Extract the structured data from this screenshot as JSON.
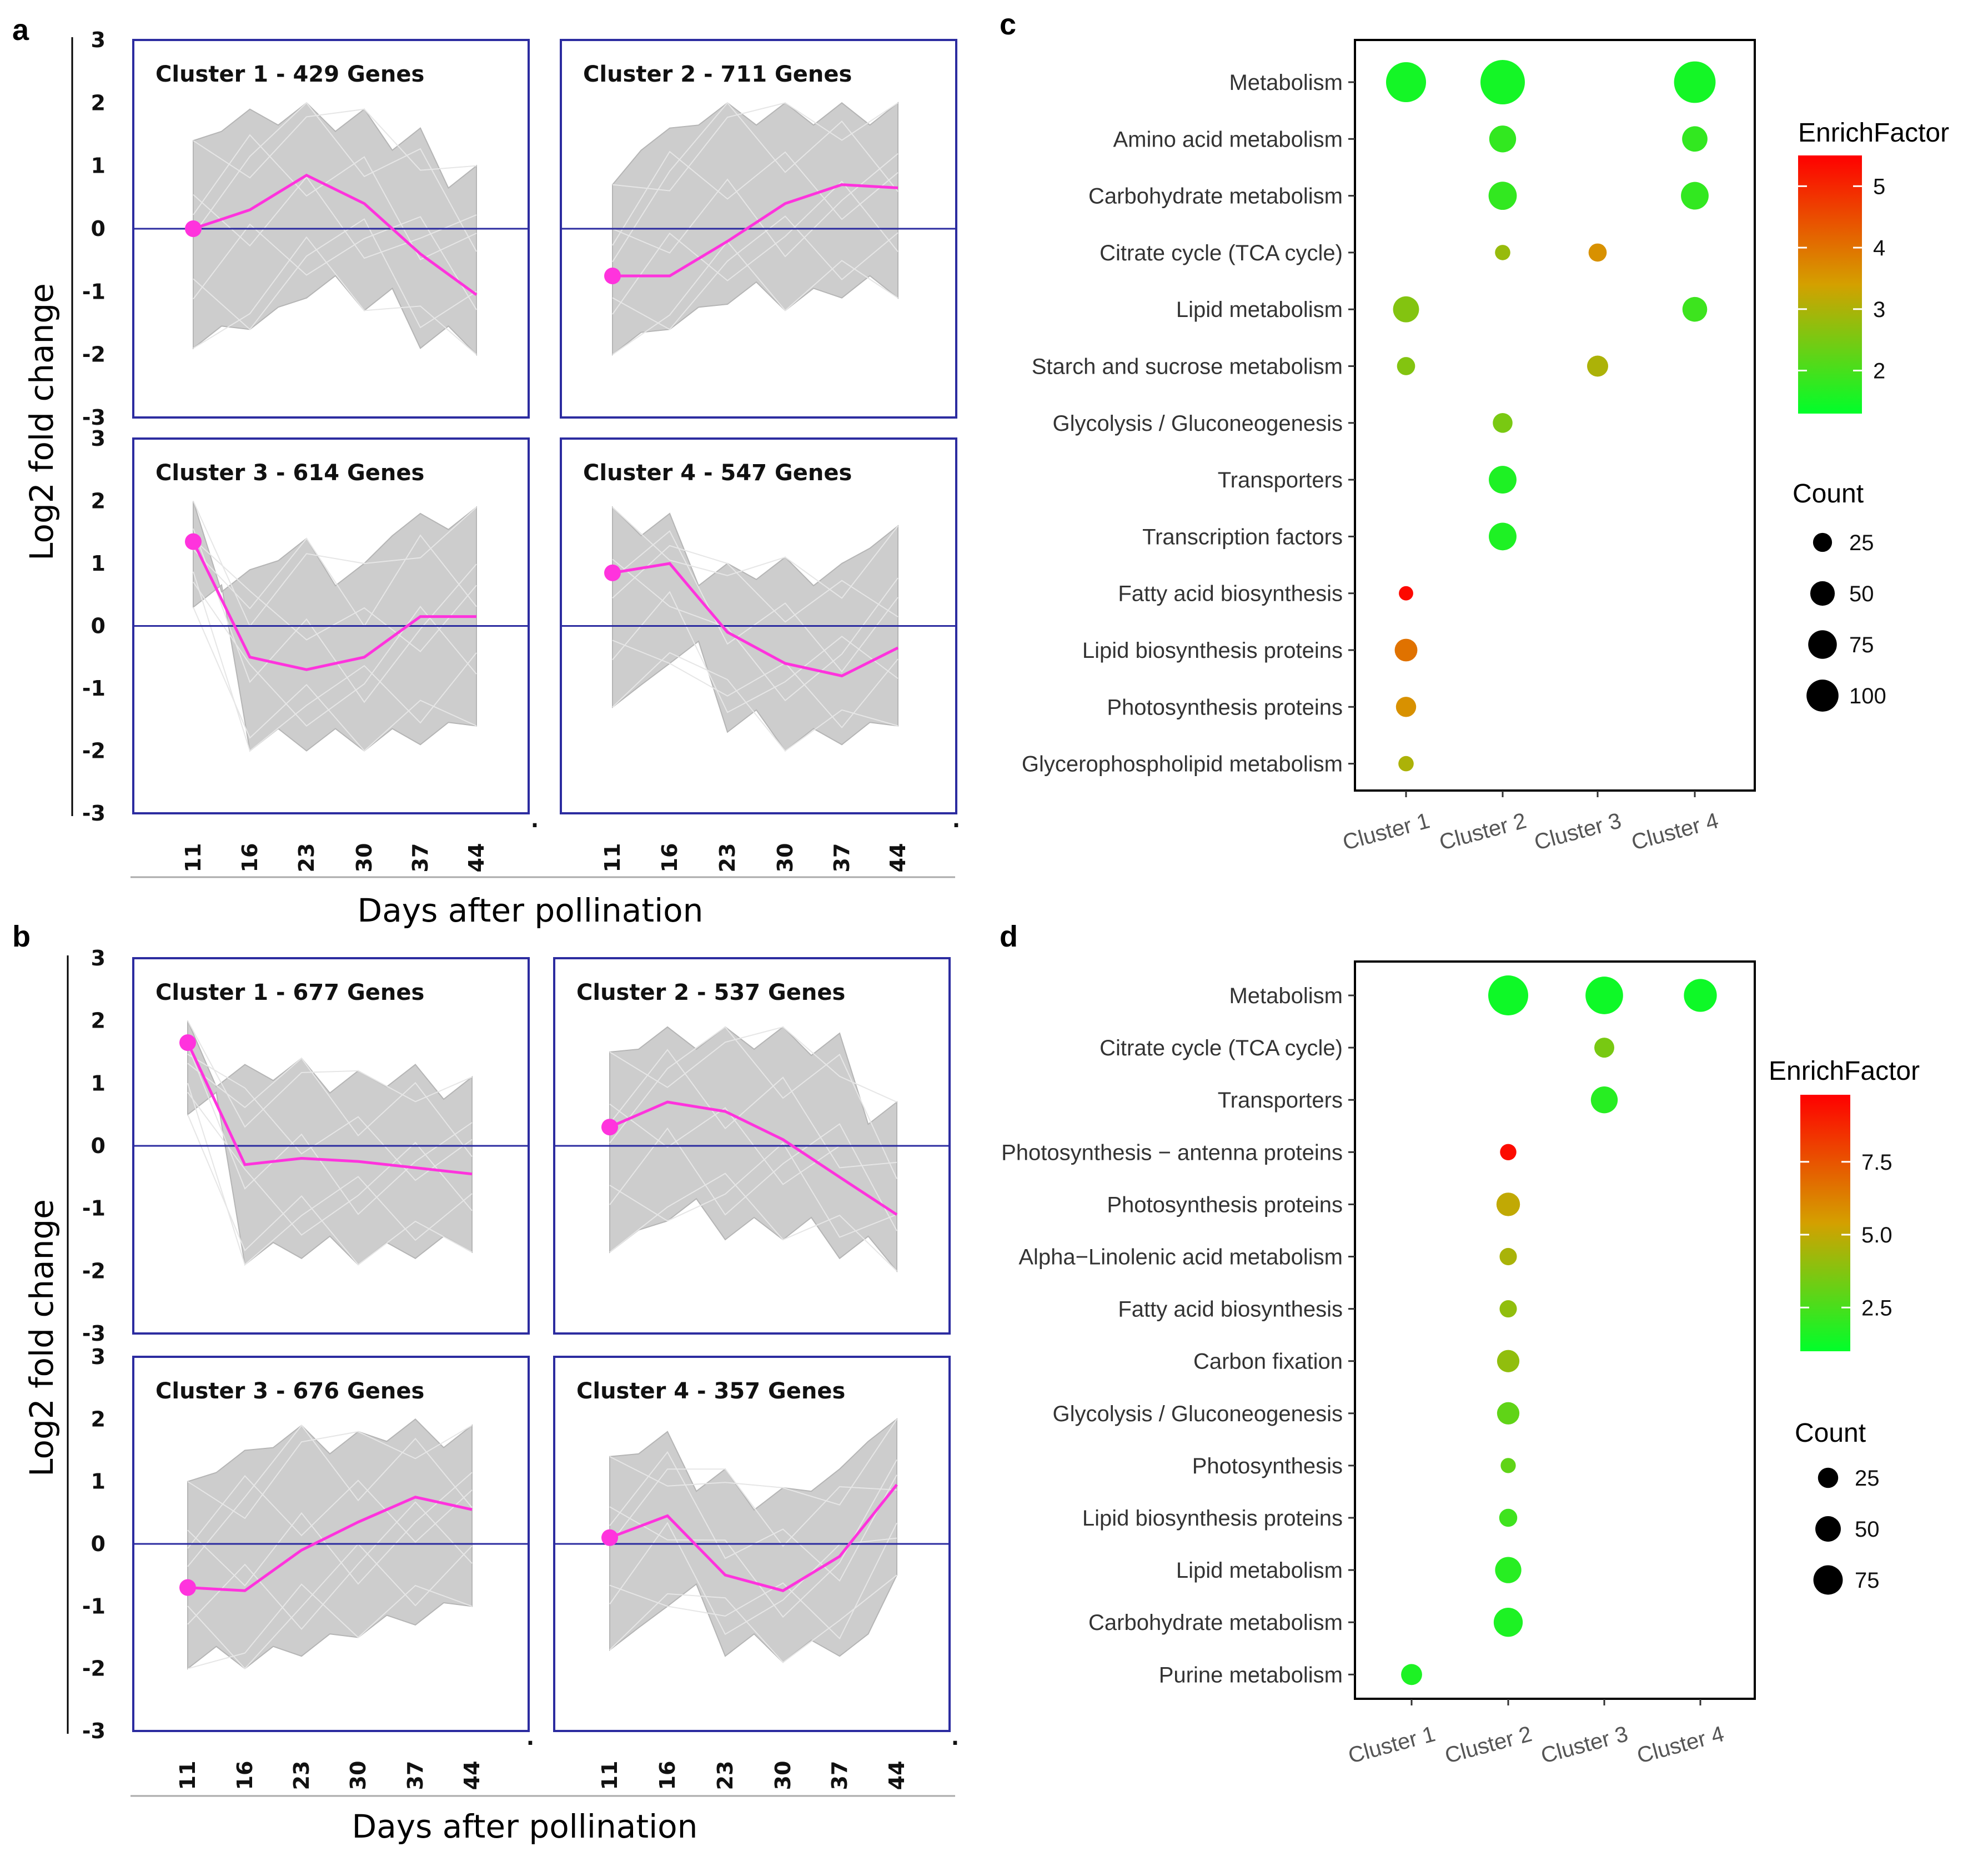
{
  "panel_labels": [
    "a",
    "b",
    "c",
    "d"
  ],
  "colors": {
    "panel_border": "#2c2ca0",
    "zero_line": "#2c2ca0",
    "bundle": "#c8c8c8",
    "profile_line": "#ff33dd",
    "enrich_low": "#00ff2a",
    "enrich_mid": "#d4a000",
    "enrich_high": "#ff0000"
  },
  "chart_data": [
    {
      "id": "a",
      "type": "line",
      "ylabel": "Log2 fold change",
      "xlabel": "Days after pollination",
      "x": [
        "11",
        "16",
        "23",
        "30",
        "37",
        "44"
      ],
      "ylim": [
        -3,
        3
      ],
      "yticks": [
        "3",
        "2",
        "1",
        "0",
        "-1",
        "-2",
        "-3"
      ],
      "clusters": [
        {
          "title": "Cluster 1 - 429 Genes",
          "profile": [
            0,
            0.3,
            0.85,
            0.4,
            -0.4,
            -1.05
          ],
          "upper": [
            1.4,
            1.9,
            2.0,
            1.9,
            1.6,
            1.0
          ],
          "lower": [
            -1.9,
            -1.6,
            -1.1,
            -1.3,
            -1.9,
            -2.0
          ]
        },
        {
          "title": "Cluster 2 - 711 Genes",
          "profile": [
            -0.75,
            -0.75,
            -0.2,
            0.4,
            0.7,
            0.65
          ],
          "upper": [
            0.7,
            1.6,
            2.0,
            2.0,
            2.0,
            2.0
          ],
          "lower": [
            -2.0,
            -1.6,
            -1.2,
            -1.3,
            -1.1,
            -1.1
          ]
        },
        {
          "title": "Cluster 3 - 614 Genes",
          "profile": [
            1.35,
            -0.5,
            -0.7,
            -0.5,
            0.15,
            0.15
          ],
          "upper": [
            2.0,
            0.9,
            1.4,
            1.0,
            1.8,
            1.9
          ],
          "lower": [
            0.3,
            -2.0,
            -2.0,
            -2.0,
            -1.9,
            -1.6
          ]
        },
        {
          "title": "Cluster 4 - 547 Genes",
          "profile": [
            0.85,
            1.0,
            -0.1,
            -0.6,
            -0.8,
            -0.35
          ],
          "upper": [
            1.9,
            1.8,
            1.0,
            1.1,
            1.0,
            1.6
          ],
          "lower": [
            -1.3,
            -0.6,
            -1.7,
            -2.0,
            -1.9,
            -1.6
          ]
        }
      ]
    },
    {
      "id": "b",
      "type": "line",
      "ylabel": "Log2 fold change",
      "xlabel": "Days after pollination",
      "x": [
        "11",
        "16",
        "23",
        "30",
        "37",
        "44"
      ],
      "ylim": [
        -3,
        3
      ],
      "yticks": [
        "3",
        "2",
        "1",
        "0",
        "-1",
        "-2",
        "-3"
      ],
      "clusters": [
        {
          "title": "Cluster 1 - 677 Genes",
          "profile": [
            1.65,
            -0.3,
            -0.2,
            -0.25,
            -0.35,
            -0.45
          ],
          "upper": [
            2.0,
            1.3,
            1.4,
            1.2,
            1.3,
            1.1
          ],
          "lower": [
            0.5,
            -1.9,
            -1.8,
            -1.9,
            -1.8,
            -1.7
          ]
        },
        {
          "title": "Cluster 2 - 537 Genes",
          "profile": [
            0.3,
            0.7,
            0.55,
            0.1,
            -0.5,
            -1.1
          ],
          "upper": [
            1.5,
            1.9,
            1.9,
            1.9,
            1.8,
            0.7
          ],
          "lower": [
            -1.7,
            -1.2,
            -1.5,
            -1.5,
            -1.8,
            -2.0
          ]
        },
        {
          "title": "Cluster 3 - 676 Genes",
          "profile": [
            -0.7,
            -0.75,
            -0.1,
            0.35,
            0.75,
            0.55
          ],
          "upper": [
            1.0,
            1.5,
            1.9,
            1.8,
            2.0,
            1.9
          ],
          "lower": [
            -2.0,
            -2.0,
            -1.8,
            -1.5,
            -1.3,
            -1.0
          ]
        },
        {
          "title": "Cluster 4 - 357 Genes",
          "profile": [
            0.1,
            0.45,
            -0.5,
            -0.75,
            -0.2,
            0.95
          ],
          "upper": [
            1.4,
            1.8,
            1.2,
            0.9,
            1.2,
            2.0
          ],
          "lower": [
            -1.7,
            -1.0,
            -1.8,
            -1.9,
            -1.8,
            -0.5
          ]
        }
      ]
    },
    {
      "id": "c",
      "type": "scatter",
      "categories_x": [
        "Cluster 1",
        "Cluster 2",
        "Cluster 3",
        "Cluster 4"
      ],
      "categories_y": [
        "Metabolism",
        "Amino acid metabolism",
        "Carbohydrate metabolism",
        "Citrate cycle (TCA cycle)",
        "Lipid metabolism",
        "Starch and sucrose metabolism",
        "Glycolysis / Gluconeogenesis",
        "Transporters",
        "Transcription factors",
        "Fatty acid biosynthesis",
        "Lipid biosynthesis proteins",
        "Photosynthesis proteins",
        "Glycerophospholipid metabolism"
      ],
      "points": [
        {
          "y": "Metabolism",
          "x": "Cluster 1",
          "count": 100,
          "enrich": 1.5
        },
        {
          "y": "Metabolism",
          "x": "Cluster 2",
          "count": 130,
          "enrich": 1.5
        },
        {
          "y": "Metabolism",
          "x": "Cluster 4",
          "count": 110,
          "enrich": 1.5
        },
        {
          "y": "Amino acid metabolism",
          "x": "Cluster 2",
          "count": 35,
          "enrich": 1.8
        },
        {
          "y": "Amino acid metabolism",
          "x": "Cluster 4",
          "count": 30,
          "enrich": 1.8
        },
        {
          "y": "Carbohydrate metabolism",
          "x": "Cluster 2",
          "count": 40,
          "enrich": 1.8
        },
        {
          "y": "Carbohydrate metabolism",
          "x": "Cluster 4",
          "count": 38,
          "enrich": 1.8
        },
        {
          "y": "Citrate cycle (TCA cycle)",
          "x": "Cluster 2",
          "count": 8,
          "enrich": 2.8
        },
        {
          "y": "Citrate cycle (TCA cycle)",
          "x": "Cluster 3",
          "count": 12,
          "enrich": 3.6
        },
        {
          "y": "Lipid metabolism",
          "x": "Cluster 1",
          "count": 32,
          "enrich": 2.6
        },
        {
          "y": "Lipid metabolism",
          "x": "Cluster 4",
          "count": 28,
          "enrich": 1.9
        },
        {
          "y": "Starch and sucrose metabolism",
          "x": "Cluster 1",
          "count": 12,
          "enrich": 2.6
        },
        {
          "y": "Starch and sucrose metabolism",
          "x": "Cluster 3",
          "count": 18,
          "enrich": 3.0
        },
        {
          "y": "Glycolysis / Gluconeogenesis",
          "x": "Cluster 2",
          "count": 15,
          "enrich": 2.5
        },
        {
          "y": "Transporters",
          "x": "Cluster 2",
          "count": 38,
          "enrich": 1.6
        },
        {
          "y": "Transcription factors",
          "x": "Cluster 2",
          "count": 38,
          "enrich": 1.6
        },
        {
          "y": "Fatty acid biosynthesis",
          "x": "Cluster 1",
          "count": 7,
          "enrich": 5.4
        },
        {
          "y": "Lipid biosynthesis proteins",
          "x": "Cluster 1",
          "count": 22,
          "enrich": 4.0
        },
        {
          "y": "Photosynthesis proteins",
          "x": "Cluster 1",
          "count": 16,
          "enrich": 3.6
        },
        {
          "y": "Glycerophospholipid metabolism",
          "x": "Cluster 1",
          "count": 8,
          "enrich": 3.0
        }
      ],
      "legend_enrich": {
        "title": "EnrichFactor",
        "ticks": [
          "5",
          "4",
          "3",
          "2"
        ],
        "tick_values": [
          5,
          4,
          3,
          2
        ],
        "min": 1.3,
        "max": 5.5
      },
      "legend_count": {
        "title": "Count",
        "labels": [
          "25",
          "50",
          "75",
          "100"
        ],
        "values": [
          25,
          50,
          75,
          100
        ]
      }
    },
    {
      "id": "d",
      "type": "scatter",
      "categories_x": [
        "Cluster 1",
        "Cluster 2",
        "Cluster 3",
        "Cluster 4"
      ],
      "categories_y": [
        "Metabolism",
        "Citrate cycle (TCA cycle)",
        "Transporters",
        "Photosynthesis − antenna proteins",
        "Photosynthesis proteins",
        "Alpha−Linolenic acid metabolism",
        "Fatty acid biosynthesis",
        "Carbon fixation",
        "Glycolysis / Gluconeogenesis",
        "Photosynthesis",
        "Lipid biosynthesis proteins",
        "Lipid metabolism",
        "Carbohydrate metabolism",
        "Purine metabolism"
      ],
      "points": [
        {
          "y": "Metabolism",
          "x": "Cluster 2",
          "count": 95,
          "enrich": 1.3
        },
        {
          "y": "Metabolism",
          "x": "Cluster 3",
          "count": 80,
          "enrich": 1.3
        },
        {
          "y": "Metabolism",
          "x": "Cluster 4",
          "count": 55,
          "enrich": 1.3
        },
        {
          "y": "Citrate cycle (TCA cycle)",
          "x": "Cluster 3",
          "count": 12,
          "enrich": 3.5
        },
        {
          "y": "Transporters",
          "x": "Cluster 3",
          "count": 30,
          "enrich": 1.8
        },
        {
          "y": "Photosynthesis − antenna proteins",
          "x": "Cluster 2",
          "count": 7,
          "enrich": 9.5
        },
        {
          "y": "Photosynthesis proteins",
          "x": "Cluster 2",
          "count": 20,
          "enrich": 5.0
        },
        {
          "y": "Alpha−Linolenic acid metabolism",
          "x": "Cluster 2",
          "count": 8,
          "enrich": 4.5
        },
        {
          "y": "Fatty acid biosynthesis",
          "x": "Cluster 2",
          "count": 8,
          "enrich": 4.0
        },
        {
          "y": "Carbon fixation",
          "x": "Cluster 2",
          "count": 17,
          "enrich": 4.0
        },
        {
          "y": "Glycolysis / Gluconeogenesis",
          "x": "Cluster 2",
          "count": 17,
          "enrich": 3.0
        },
        {
          "y": "Photosynthesis",
          "x": "Cluster 2",
          "count": 6,
          "enrich": 3.0
        },
        {
          "y": "Lipid biosynthesis proteins",
          "x": "Cluster 2",
          "count": 9,
          "enrich": 2.3
        },
        {
          "y": "Lipid metabolism",
          "x": "Cluster 2",
          "count": 28,
          "enrich": 1.8
        },
        {
          "y": "Carbohydrate metabolism",
          "x": "Cluster 2",
          "count": 38,
          "enrich": 1.6
        },
        {
          "y": "Purine metabolism",
          "x": "Cluster 1",
          "count": 14,
          "enrich": 1.6
        }
      ],
      "legend_enrich": {
        "title": "EnrichFactor",
        "ticks": [
          "7.5",
          "5.0",
          "2.5"
        ],
        "tick_values": [
          7.5,
          5.0,
          2.5
        ],
        "min": 1.0,
        "max": 9.8
      },
      "legend_count": {
        "title": "Count",
        "labels": [
          "25",
          "50",
          "75"
        ],
        "values": [
          25,
          50,
          75
        ]
      }
    }
  ]
}
